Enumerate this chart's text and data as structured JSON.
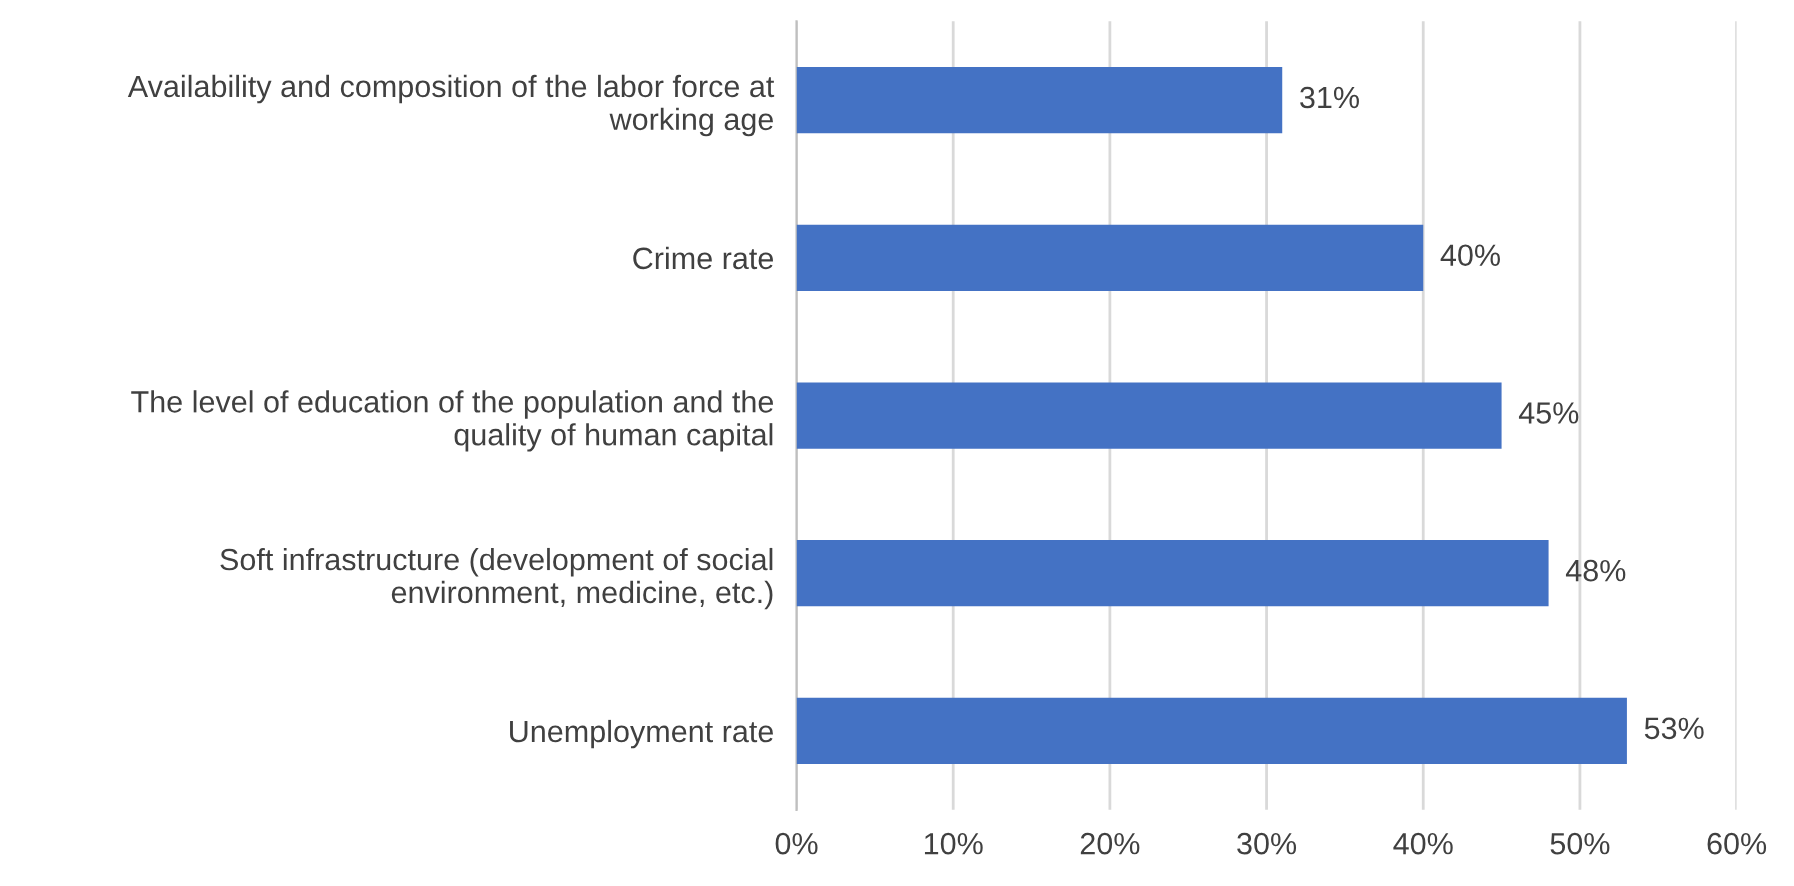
{
  "chart_data": {
    "type": "bar",
    "orientation": "horizontal",
    "categories": [
      "Availability and composition of the labor force at\nworking age",
      "Crime rate",
      "The level of education of the population and the\nquality of human capital",
      "Soft infrastructure (development of social\nenvironment, medicine, etc.)",
      "Unemployment rate"
    ],
    "values": [
      31,
      40,
      45,
      48,
      53
    ],
    "value_labels": [
      "31%",
      "40%",
      "45%",
      "48%",
      "53%"
    ],
    "color": "#4472c4",
    "xlim": [
      0,
      60
    ],
    "xticks": [
      {
        "value": 0,
        "label": "0%"
      },
      {
        "value": 10,
        "label": "10%"
      },
      {
        "value": 20,
        "label": "20%"
      },
      {
        "value": 30,
        "label": "30%"
      },
      {
        "value": 40,
        "label": "40%"
      },
      {
        "value": 50,
        "label": "50%"
      },
      {
        "value": 60,
        "label": "60%"
      }
    ],
    "grid": "x",
    "legend": false
  }
}
